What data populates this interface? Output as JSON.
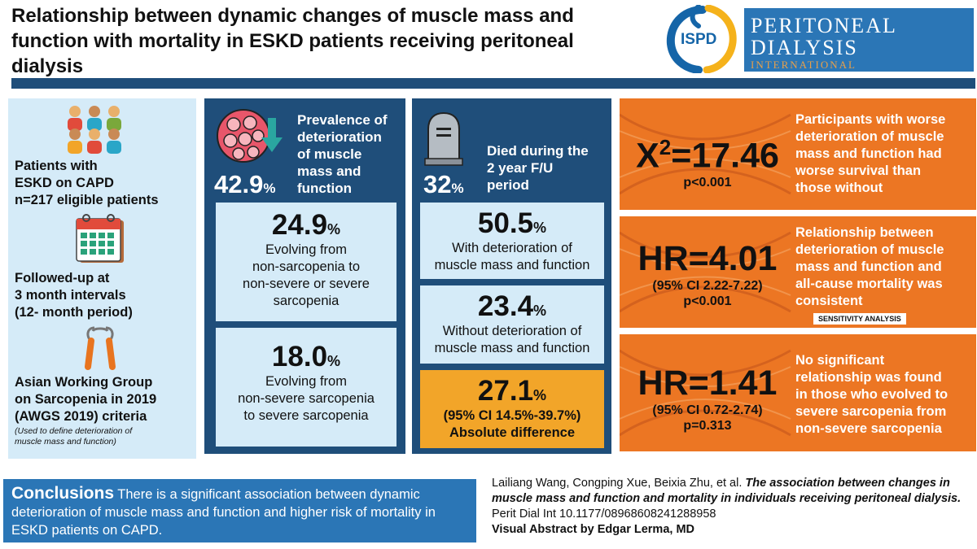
{
  "header": {
    "title": "Relationship between dynamic changes of muscle mass and function with mortality in ESKD patients receiving peritoneal dialysis",
    "logo_badge": "ISPD",
    "journal_line1": "PERITONEAL",
    "journal_line2": "DIALYSIS",
    "journal_line3": "INTERNATIONAL"
  },
  "colors": {
    "navy": "#1f4e7a",
    "light_blue": "#d5ebf8",
    "orange": "#ec7623",
    "amber": "#f2a529",
    "journal_blue": "#2b76b6"
  },
  "methods": {
    "patients": [
      "Patients with",
      "ESKD on CAPD",
      "n=217 eligible patients"
    ],
    "followup": [
      "Followed-up at",
      "3 month intervals",
      "(12- month period)"
    ],
    "criteria": [
      "Asian Working Group",
      "on Sarcopenia in 2019",
      "(AWGS 2019) criteria"
    ],
    "criteria_note": [
      "(Used to define deterioration of",
      "muscle mass and function)"
    ],
    "icons": [
      "people-group-icon",
      "calendar-icon",
      "hand-grip-icon"
    ]
  },
  "prevalence": {
    "pct": "42.9",
    "pct_unit": "%",
    "label": [
      "Prevalence of",
      "deterioration",
      "of muscle",
      "mass and",
      "function"
    ],
    "box1_pct": "24.9",
    "box1_unit": "%",
    "box1_text": [
      "Evolving from",
      "non-sarcopenia to",
      "non-severe or severe",
      "sarcopenia"
    ],
    "box2_pct": "18.0",
    "box2_unit": "%",
    "box2_text": [
      "Evolving from",
      "non-severe sarcopenia",
      "to severe sarcopenia"
    ]
  },
  "mortality": {
    "pct": "32",
    "pct_unit": "%",
    "label": [
      "Died during the",
      "2 year F/U",
      "period"
    ],
    "with_pct": "50.5",
    "with_unit": "%",
    "with_text": [
      "With deterioration of",
      "muscle mass and function"
    ],
    "without_pct": "23.4",
    "without_unit": "%",
    "without_text": [
      "Without deterioration of",
      "muscle mass and function"
    ],
    "diff_pct": "27.1",
    "diff_unit": "%",
    "diff_ci": "(95% CI 14.5%-39.7%)",
    "diff_label": "Absolute difference"
  },
  "results": [
    {
      "stat_prefix": "X",
      "stat_sup": "2",
      "stat_value": "=17.46",
      "sub1": "p<0.001",
      "text": [
        "Participants with worse",
        "deterioration of muscle",
        "mass and function had",
        "worse survival than",
        "those without"
      ]
    },
    {
      "stat_value": "HR=4.01",
      "sub1": "(95% CI 2.22-7.22)",
      "sub2": "p<0.001",
      "text": [
        "Relationship between",
        "deterioration of muscle",
        "mass and function and",
        "all-cause mortality was",
        "consistent"
      ],
      "badge": "SENSITIVITY ANALYSIS"
    },
    {
      "stat_value": "HR=1.41",
      "sub1": "(95% CI 0.72-2.74)",
      "sub2": "p=0.313",
      "text": [
        "No significant",
        "relationship was found",
        "in those who evolved to",
        "severe sarcopenia from",
        "non-severe sarcopenia"
      ]
    }
  ],
  "footer": {
    "conclusion_label": "Conclusions",
    "conclusion_text": " There is a significant association between dynamic deterioration of muscle mass and function and higher risk of mortality in ESKD patients on CAPD.",
    "authors": "Lailiang Wang, Congping Xue, Beixia Zhu, et al. ",
    "paper_title": "The association between changes in muscle mass and function and mortality in individuals receiving peritoneal dialysis.",
    "journal_ref": " Perit Dial Int 10.1177/08968608241288958",
    "credit": "Visual Abstract by Edgar Lerma, MD"
  }
}
